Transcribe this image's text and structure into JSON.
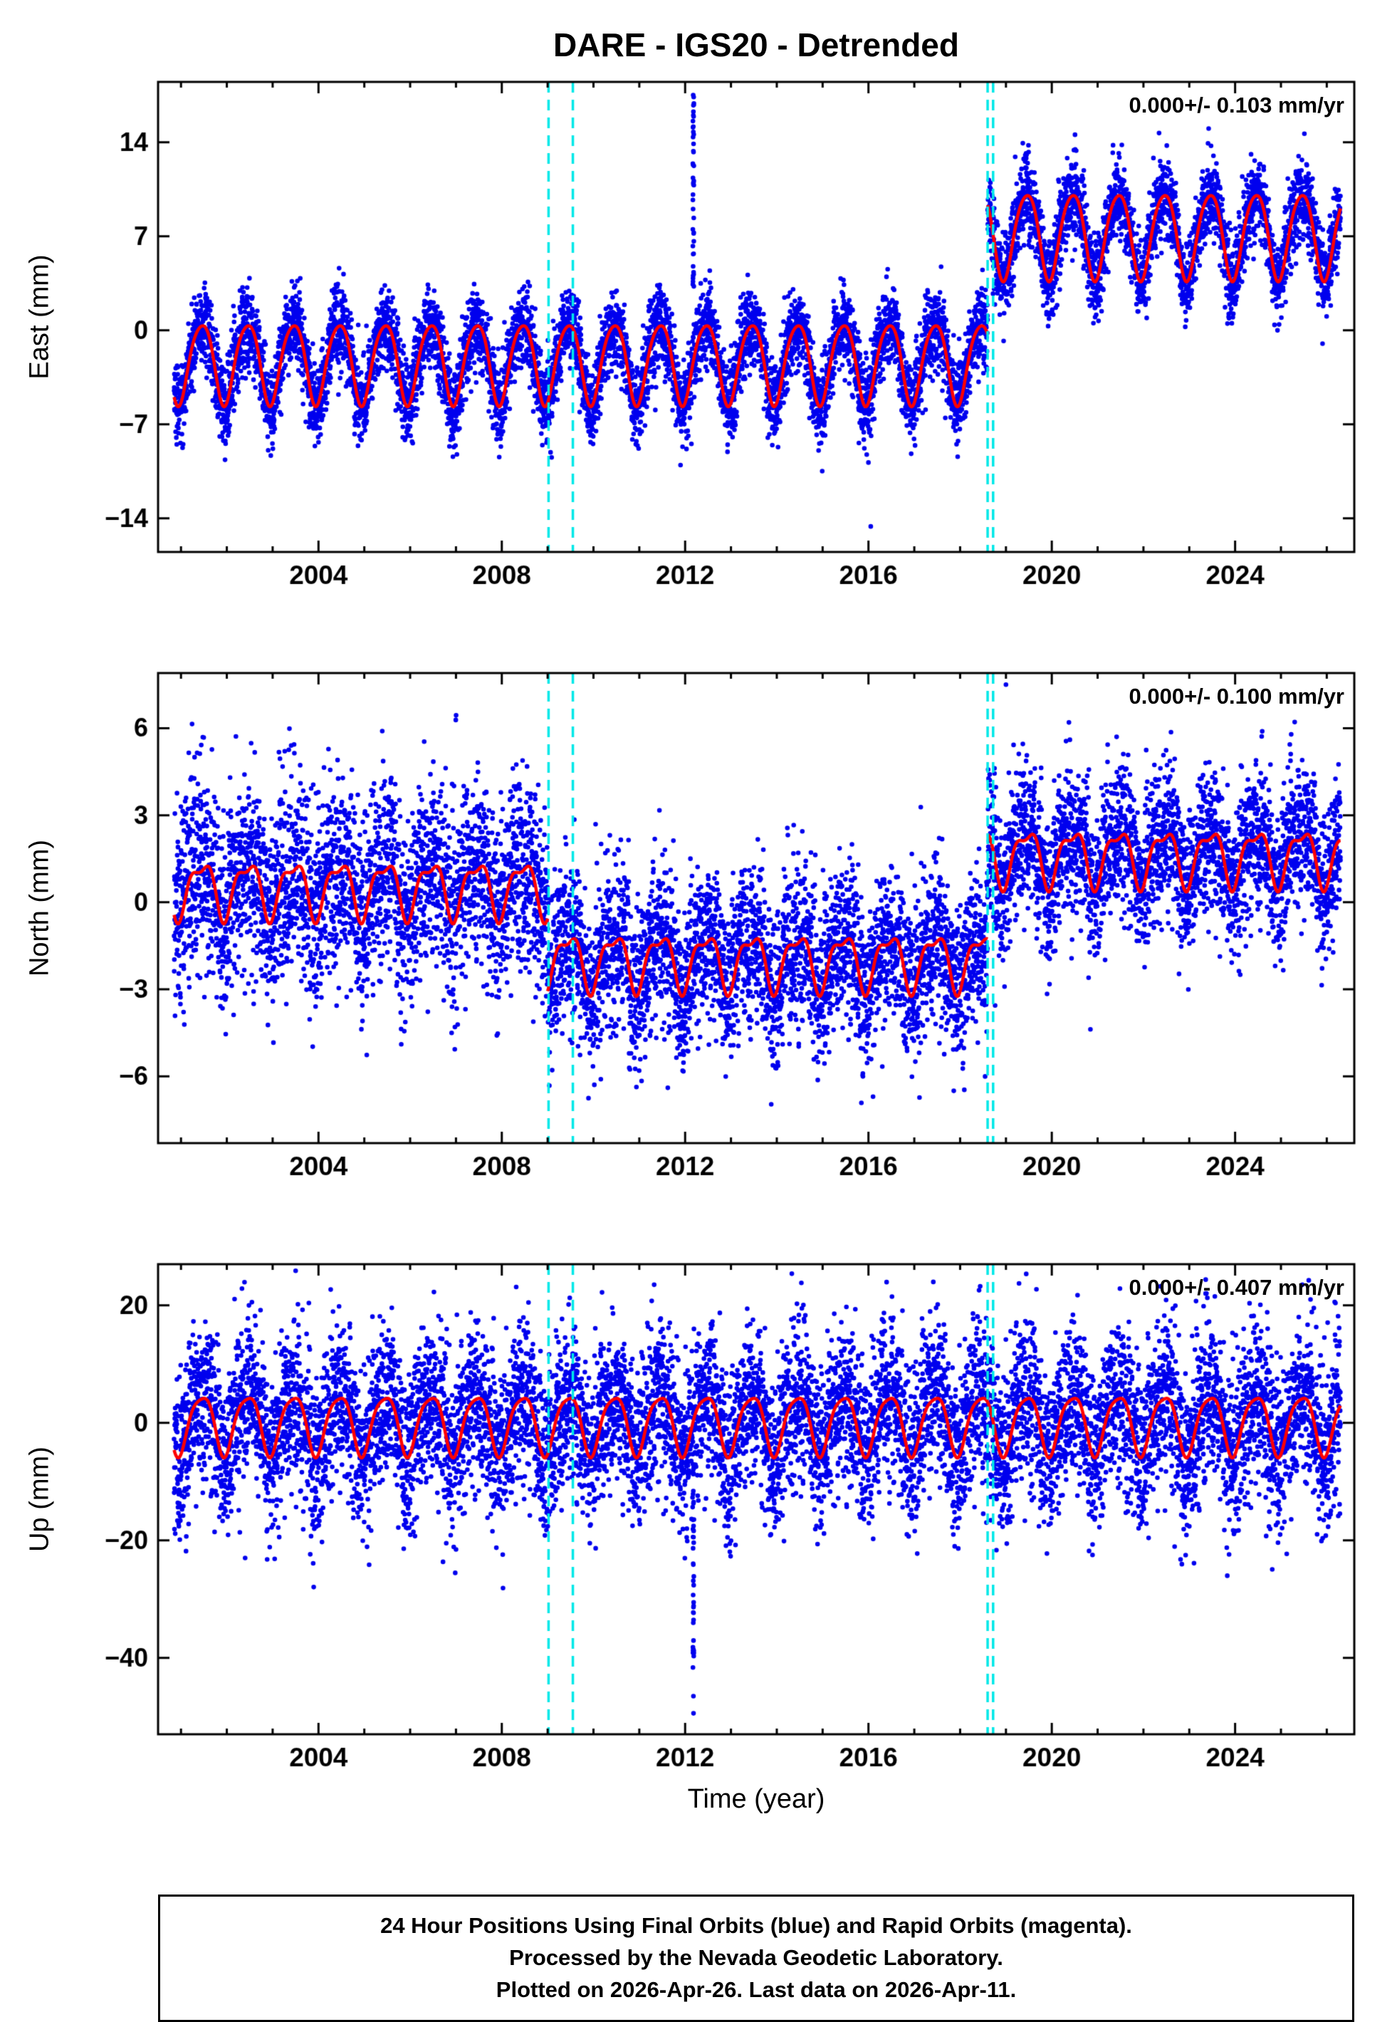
{
  "title": "DARE - IGS20 - Detrended",
  "xlabel": "Time (year)",
  "footer": {
    "lines": [
      "24 Hour Positions Using Final Orbits (blue) and Rapid Orbits (magenta).",
      "Processed by the Nevada Geodetic Laboratory.",
      "Plotted on 2026-Apr-26. Last data on 2026-Apr-11."
    ]
  },
  "colors": {
    "point": "#0000ee",
    "model_line": "#ff0000",
    "event_line": "#00e8e8",
    "frame": "#000000"
  },
  "chart_data": [
    {
      "type": "scatter",
      "title": "East component, detrended daily GPS positions",
      "ylabel": "East (mm)",
      "annotation": "0.000+/- 0.103 mm/yr",
      "xlim": [
        2000.5,
        2026.6
      ],
      "ylim": [
        -16.5,
        18.5
      ],
      "xticks": [
        2004,
        2008,
        2012,
        2016,
        2020,
        2024
      ],
      "yticks": [
        -14,
        -7,
        0,
        7,
        14
      ],
      "grid": false,
      "legend": "none",
      "x_start": 2000.85,
      "x_end": 2026.3,
      "points_per_year": 365,
      "phase": 0.2,
      "vlines": [
        2009.02,
        2009.55,
        2018.6,
        2018.72
      ],
      "segments": [
        {
          "t0": 2000.85,
          "t1": 2018.6,
          "mean": -2.3,
          "amp": 3.0,
          "amp2": 0.4,
          "noise": 1.5
        },
        {
          "t0": 2018.6,
          "t1": 2026.3,
          "mean": 7.2,
          "amp": 3.2,
          "amp2": 0.4,
          "noise": 1.5
        }
      ],
      "outliers": [
        {
          "x": 2012.18,
          "jitter": 0.012,
          "y0": 3,
          "y1": 17.6,
          "n": 45
        },
        {
          "x": 2016.05,
          "jitter": 0,
          "y0": -14.6,
          "y1": -14.6,
          "n": 1
        }
      ]
    },
    {
      "type": "scatter",
      "title": "North component, detrended daily GPS positions",
      "ylabel": "North (mm)",
      "annotation": "0.000+/- 0.100 mm/yr",
      "xlim": [
        2000.5,
        2026.6
      ],
      "ylim": [
        -8.3,
        7.9
      ],
      "xticks": [
        2004,
        2008,
        2012,
        2016,
        2020,
        2024
      ],
      "yticks": [
        -6,
        -3,
        0,
        3,
        6
      ],
      "grid": false,
      "legend": "none",
      "x_start": 2000.85,
      "x_end": 2026.3,
      "points_per_year": 365,
      "phase": 0.2,
      "vlines": [
        2009.02,
        2009.55,
        2018.6,
        2018.72
      ],
      "segments": [
        {
          "t0": 2000.85,
          "t1": 2009.0,
          "mean": 0.5,
          "amp": 0.9,
          "amp2": 0.35,
          "noise": 1.7
        },
        {
          "t0": 2009.0,
          "t1": 2018.6,
          "mean": -2.0,
          "amp": 0.9,
          "amp2": 0.35,
          "noise": 1.4
        },
        {
          "t0": 2018.6,
          "t1": 2026.3,
          "mean": 1.6,
          "amp": 0.9,
          "amp2": 0.35,
          "noise": 1.3
        }
      ],
      "outliers": [
        {
          "x": 2016.1,
          "jitter": 0,
          "y0": -6.7,
          "y1": -6.7,
          "n": 1
        },
        {
          "x": 2007.0,
          "jitter": 0.005,
          "y0": 6.2,
          "y1": 6.6,
          "n": 2
        },
        {
          "x": 2019.0,
          "jitter": 0,
          "y0": 7.5,
          "y1": 7.5,
          "n": 1
        }
      ]
    },
    {
      "type": "scatter",
      "title": "Up component, detrended daily GPS positions",
      "ylabel": "Up (mm)",
      "annotation": "0.000+/- 0.407 mm/yr",
      "xlim": [
        2000.5,
        2026.6
      ],
      "ylim": [
        -53,
        27
      ],
      "xticks": [
        2004,
        2008,
        2012,
        2016,
        2020,
        2024
      ],
      "yticks": [
        -40,
        -20,
        0,
        20
      ],
      "grid": false,
      "legend": "none",
      "x_start": 2000.85,
      "x_end": 2026.3,
      "points_per_year": 365,
      "phase": 0.2,
      "vlines": [
        2009.02,
        2009.55,
        2018.6,
        2018.72
      ],
      "segments": [
        {
          "t0": 2000.85,
          "t1": 2026.3,
          "mean": 0.0,
          "amp": 5.0,
          "amp2": 1.0,
          "noise": 7.0
        }
      ],
      "outliers": [
        {
          "x": 2012.18,
          "jitter": 0.012,
          "y0": -52,
          "y1": -6,
          "n": 40
        },
        {
          "x": 2002.4,
          "jitter": 0,
          "y0": -23,
          "y1": -23,
          "n": 1
        }
      ]
    }
  ]
}
